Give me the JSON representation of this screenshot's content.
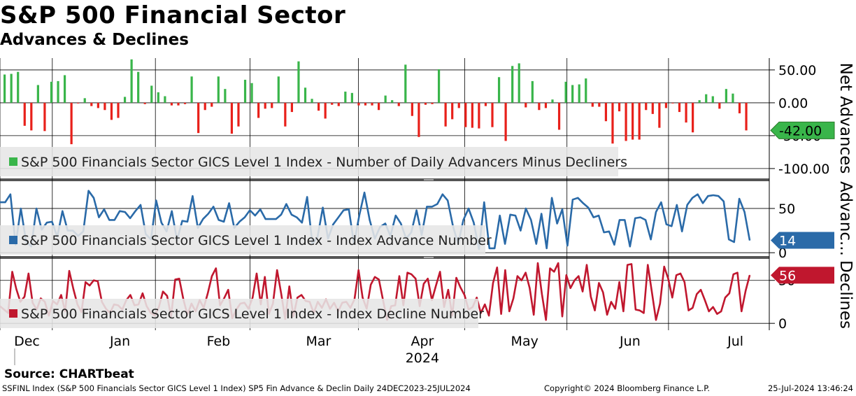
{
  "header": {
    "title": "S&P 500 Financial Sector",
    "subtitle": "Advances & Declines"
  },
  "footer": {
    "source": "Source: CHARTbeat",
    "description": "SSFINL Index (S&P 500 Financials Sector GICS Level 1 Index) SP5 Fin Advance & Declin  Daily 24DEC2023-25JUL2024",
    "copyright": "Copyright© 2024 Bloomberg Finance L.P.",
    "timestamp": "25-Jul-2024 13:46:24"
  },
  "colors": {
    "positive": "#39b54a",
    "negative": "#e8201a",
    "advance": "#2a6aa8",
    "decline": "#c0172e",
    "grid": "#000000",
    "legend_bg": "#e6e6e6"
  },
  "chart_data": [
    {
      "type": "bar",
      "panel": "net",
      "axis_label": "Net Advances",
      "legend": "S&P 500 Financials Sector GICS Level 1 Index - Number of Daily Advancers Minus Decliners",
      "ylim": [
        -115,
        68
      ],
      "ticks": [
        50,
        0,
        -50,
        -100
      ],
      "tick_labels": [
        "50.00",
        "0.00",
        "-50.00",
        "-100.00"
      ],
      "last_label": "-42.00",
      "values": [
        43,
        44,
        47,
        -35,
        -42,
        27,
        -43,
        32,
        33,
        42,
        -63,
        -1,
        7,
        -5,
        -8,
        -11,
        -26,
        -23,
        9,
        66,
        47,
        -2,
        26,
        16,
        10,
        -4,
        -4,
        -2,
        40,
        -46,
        -11,
        -6,
        40,
        21,
        -47,
        -36,
        35,
        30,
        -23,
        -9,
        -8,
        40,
        -36,
        -14,
        63,
        23,
        6,
        -12,
        -24,
        -3,
        -5,
        17,
        15,
        -4,
        -4,
        -4,
        -11,
        11,
        4,
        -5,
        58,
        -20,
        -52,
        -3,
        -2,
        51,
        -36,
        -25,
        -8,
        -37,
        -38,
        -39,
        -5,
        -37,
        39,
        -58,
        56,
        60,
        -7,
        33,
        -11,
        -8,
        5,
        -41,
        32,
        27,
        28,
        37,
        -6,
        -6,
        -28,
        -62,
        -13,
        -58,
        -56,
        -56,
        -11,
        -17,
        -38,
        -8,
        -1,
        -14,
        -30,
        -45,
        4,
        13,
        10,
        -9,
        21,
        14,
        -16,
        -42
      ],
      "grid_n": 113
    },
    {
      "type": "line",
      "panel": "advance",
      "axis_label": "Advanc...",
      "legend": "S&P 500 Financials Sector GICS Level 1 Index - Index Advance Number",
      "ylim": [
        -3,
        80
      ],
      "ticks": [
        50,
        0
      ],
      "tick_labels": [
        "50",
        "0"
      ],
      "last_label": "14",
      "values": [
        57,
        57,
        66,
        9,
        50,
        13,
        7,
        50,
        26,
        34,
        35,
        18,
        47,
        25,
        25,
        19,
        24,
        70,
        62,
        40,
        49,
        37,
        37,
        47,
        46,
        39,
        47,
        54,
        21,
        15,
        59,
        34,
        24,
        47,
        14,
        36,
        35,
        64,
        28,
        38,
        44,
        52,
        37,
        35,
        56,
        28,
        35,
        40,
        48,
        42,
        49,
        38,
        38,
        38,
        43,
        55,
        43,
        40,
        34,
        63,
        10,
        18,
        51,
        16,
        32,
        40,
        48,
        49,
        10,
        42,
        68,
        37,
        16,
        29,
        33,
        19,
        42,
        33,
        16,
        23,
        48,
        20,
        52,
        52,
        55,
        66,
        59,
        30,
        10,
        37,
        50,
        34,
        4,
        57,
        5,
        5,
        42,
        10,
        43,
        42,
        25,
        50,
        37,
        10,
        44,
        5,
        62,
        33,
        49,
        8,
        60,
        62,
        56,
        51,
        40,
        42,
        23,
        24,
        9,
        37,
        37,
        7,
        39,
        40,
        37,
        15,
        46,
        57,
        32,
        30,
        54,
        24,
        54,
        62,
        66,
        56,
        64,
        65,
        64,
        58,
        15,
        12,
        61,
        46,
        14
      ],
      "grid_n": 144
    },
    {
      "type": "line",
      "panel": "decline",
      "axis_label": "Declines",
      "legend": "S&P 500 Financials Sector GICS Level 1 Index - Index Decline Number",
      "ylim": [
        -8,
        75
      ],
      "ticks": [
        50,
        0
      ],
      "tick_labels": [
        "50",
        "0"
      ],
      "last_label": "56",
      "values": [
        20,
        16,
        12,
        60,
        40,
        25,
        31,
        58,
        24,
        16,
        29,
        25,
        9,
        26,
        22,
        33,
        14,
        61,
        40,
        22,
        13,
        48,
        44,
        50,
        49,
        25,
        17,
        12,
        22,
        21,
        16,
        27,
        33,
        21,
        22,
        35,
        20,
        12,
        9,
        19,
        37,
        32,
        8,
        51,
        52,
        28,
        10,
        23,
        14,
        27,
        18,
        35,
        55,
        64,
        21,
        29,
        39,
        6,
        16,
        23,
        24,
        17,
        30,
        58,
        22,
        54,
        11,
        23,
        62,
        35,
        5,
        43,
        8,
        30,
        33,
        26,
        25,
        12,
        25,
        18,
        28,
        17,
        24,
        14,
        24,
        25,
        18,
        28,
        62,
        30,
        17,
        45,
        54,
        51,
        27,
        4,
        20,
        21,
        55,
        21,
        59,
        57,
        52,
        20,
        46,
        52,
        27,
        44,
        60,
        19,
        39,
        9,
        53,
        42,
        33,
        16,
        19,
        30,
        12,
        22,
        9,
        47,
        65,
        11,
        62,
        14,
        29,
        55,
        50,
        59,
        41,
        10,
        70,
        34,
        4,
        64,
        60,
        70,
        8,
        56,
        41,
        50,
        55,
        37,
        68,
        31,
        15,
        47,
        36,
        10,
        25,
        17,
        48,
        14,
        68,
        69,
        16,
        15,
        12,
        68,
        36,
        4,
        23,
        66,
        52,
        30,
        56,
        58,
        48,
        15,
        18,
        34,
        39,
        27,
        14,
        19,
        11,
        14,
        30,
        35,
        57,
        59,
        14,
        38,
        56
      ],
      "grid_n": 185
    }
  ],
  "x_axis": {
    "months": [
      {
        "label": "Dec",
        "pos": 0.035
      },
      {
        "label": "Jan",
        "pos": 0.156
      },
      {
        "label": "Feb",
        "pos": 0.284
      },
      {
        "label": "Mar",
        "pos": 0.414
      },
      {
        "label": "Apr",
        "pos": 0.549
      },
      {
        "label": "May",
        "pos": 0.682
      },
      {
        "label": "Jun",
        "pos": 0.819
      },
      {
        "label": "Jul",
        "pos": 0.956
      }
    ],
    "year": "2024",
    "year_pos": 0.549
  }
}
